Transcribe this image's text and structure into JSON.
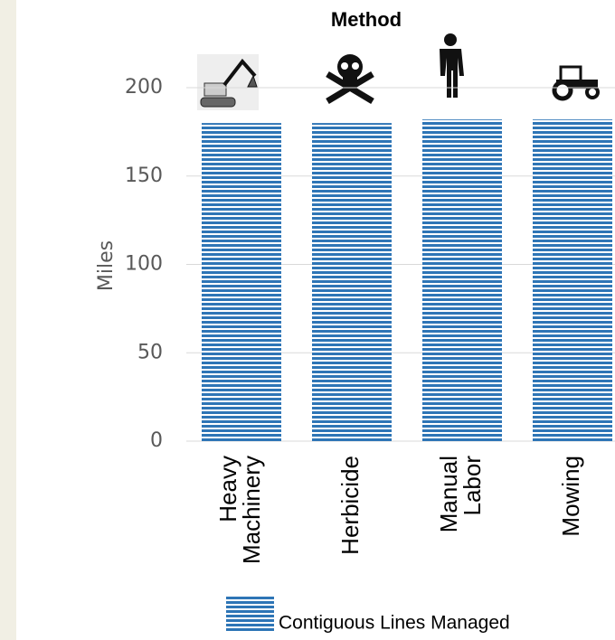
{
  "chart_data": {
    "type": "bar",
    "title": "Method",
    "y_label": "Miles",
    "categories": [
      "Heavy Machinery",
      "Herbicide",
      "Manual Labor",
      "Mowing"
    ],
    "series": [
      {
        "name": "Contiguous Lines Managed",
        "color": "#2e75b6",
        "values": [
          180,
          180,
          182,
          182
        ]
      }
    ],
    "ylim": [
      0,
      200
    ],
    "yticks": [
      0,
      50,
      100,
      150,
      200
    ],
    "grid": true,
    "legend": "bottom"
  }
}
